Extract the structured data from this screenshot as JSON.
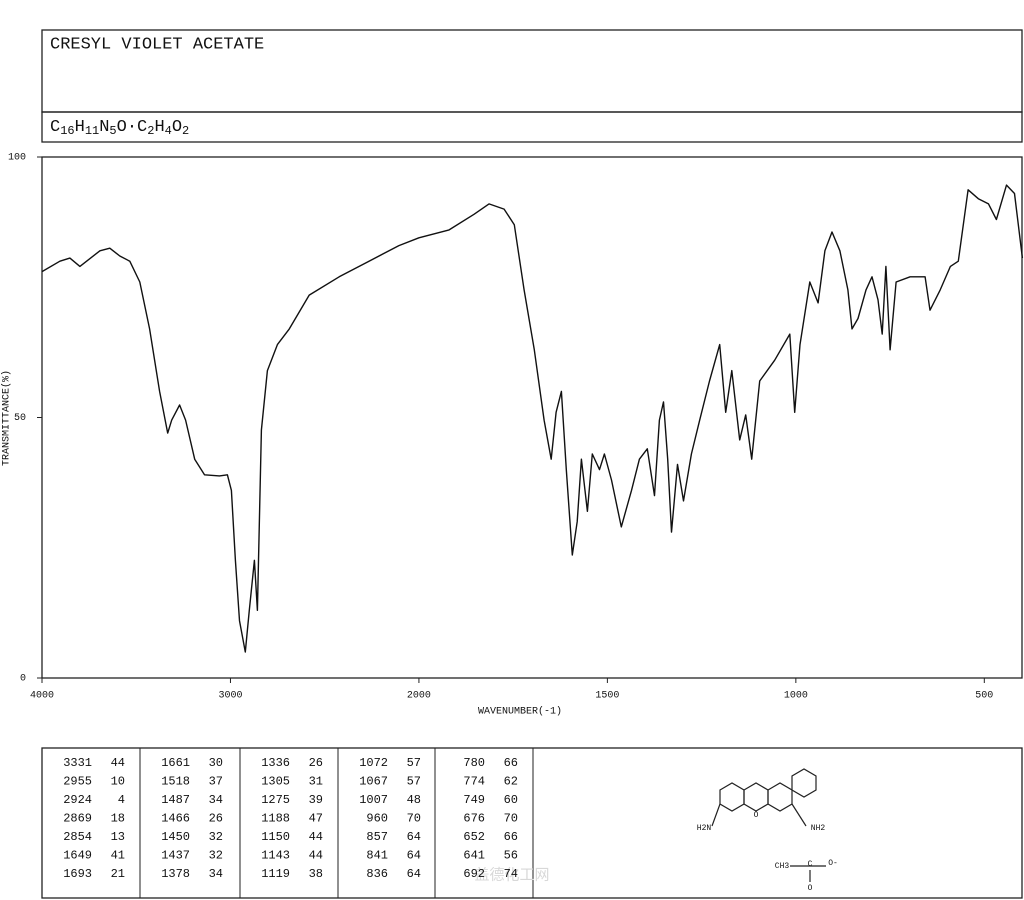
{
  "header": {
    "title": "CRESYL VIOLET ACETATE",
    "formula": "C16H11N5O·C2H4O2"
  },
  "chart_data": {
    "type": "line",
    "xlabel": "WAVENUMBER(-1)",
    "ylabel": "TRANSMITTANCE(%)",
    "color": "#111111",
    "xlim": [
      4000,
      400
    ],
    "ylim": [
      0,
      100
    ],
    "xscale": {
      "break": 2000,
      "ratio": 2
    },
    "xticks": [
      4000,
      3000,
      2000,
      1500,
      1000,
      500
    ],
    "yticks": [
      0,
      50,
      100
    ],
    "x": [
      4000,
      3905,
      3852,
      3799,
      3693,
      3640,
      3587,
      3534,
      3481,
      3429,
      3376,
      3333,
      3312,
      3270,
      3238,
      3190,
      3138,
      3058,
      3016,
      2995,
      2974,
      2952,
      2921,
      2900,
      2873,
      2857,
      2836,
      2804,
      2751,
      2688,
      2582,
      2423,
      2265,
      2106,
      2000,
      1920,
      1854,
      1814,
      1774,
      1747,
      1721,
      1694,
      1668,
      1649,
      1636,
      1622,
      1609,
      1593,
      1580,
      1569,
      1553,
      1540,
      1521,
      1508,
      1489,
      1463,
      1436,
      1415,
      1394,
      1375,
      1362,
      1351,
      1340,
      1330,
      1314,
      1298,
      1277,
      1255,
      1229,
      1202,
      1186,
      1170,
      1149,
      1133,
      1117,
      1096,
      1056,
      1016,
      1003,
      989,
      963,
      941,
      923,
      904,
      883,
      862,
      851,
      835,
      814,
      798,
      782,
      771,
      761,
      750,
      734,
      697,
      657,
      644,
      617,
      590,
      569,
      543,
      516,
      489,
      468,
      441,
      420,
      399
    ],
    "values": [
      78,
      80,
      80.6,
      79,
      82,
      82.5,
      81,
      80,
      76,
      67,
      55,
      47,
      49.5,
      52.4,
      49.5,
      42,
      39,
      38.8,
      39,
      36,
      22.6,
      11,
      5,
      13,
      22.6,
      13,
      47.6,
      59,
      64,
      67,
      73.5,
      77,
      80,
      83,
      84.5,
      86,
      89,
      91,
      90,
      87,
      74.5,
      63,
      49.5,
      42,
      51,
      55,
      40,
      23.6,
      30,
      42,
      32,
      43,
      40,
      43,
      38,
      29,
      36,
      42,
      44,
      35,
      49.5,
      53,
      42,
      28,
      41,
      34,
      43,
      49.5,
      57,
      64,
      51,
      59,
      45.7,
      50.5,
      42,
      57,
      61,
      66,
      51,
      64,
      76,
      72,
      82,
      85.6,
      82,
      74.5,
      67,
      69,
      74.5,
      77,
      72.6,
      66,
      79,
      63,
      76,
      77,
      77,
      70.6,
      74.5,
      79,
      80,
      93.7,
      92,
      91,
      88,
      94.6,
      93,
      80.6
    ]
  },
  "peak_table": {
    "columns": [
      [
        [
          3331,
          44
        ],
        [
          2955,
          10
        ],
        [
          2924,
          4
        ],
        [
          2869,
          18
        ],
        [
          2854,
          13
        ],
        [
          1649,
          41
        ],
        [
          1693,
          21
        ]
      ],
      [
        [
          1661,
          30
        ],
        [
          1518,
          37
        ],
        [
          1487,
          34
        ],
        [
          1466,
          26
        ],
        [
          1450,
          32
        ],
        [
          1437,
          32
        ],
        [
          1378,
          34
        ]
      ],
      [
        [
          1336,
          26
        ],
        [
          1305,
          31
        ],
        [
          1275,
          39
        ],
        [
          1188,
          47
        ],
        [
          1150,
          44
        ],
        [
          1143,
          44
        ],
        [
          1119,
          38
        ]
      ],
      [
        [
          1072,
          57
        ],
        [
          1067,
          57
        ],
        [
          1007,
          48
        ],
        [
          960,
          70
        ],
        [
          857,
          64
        ],
        [
          841,
          64
        ],
        [
          836,
          64
        ]
      ],
      [
        [
          780,
          66
        ],
        [
          774,
          62
        ],
        [
          749,
          60
        ],
        [
          676,
          70
        ],
        [
          652,
          66
        ],
        [
          641,
          56
        ],
        [
          692,
          74
        ]
      ]
    ]
  },
  "structure": {
    "labels": [
      "H2N",
      "NH2",
      "O",
      "CH3",
      "C",
      "O-",
      "O"
    ]
  },
  "watermark": "盖德化工网"
}
